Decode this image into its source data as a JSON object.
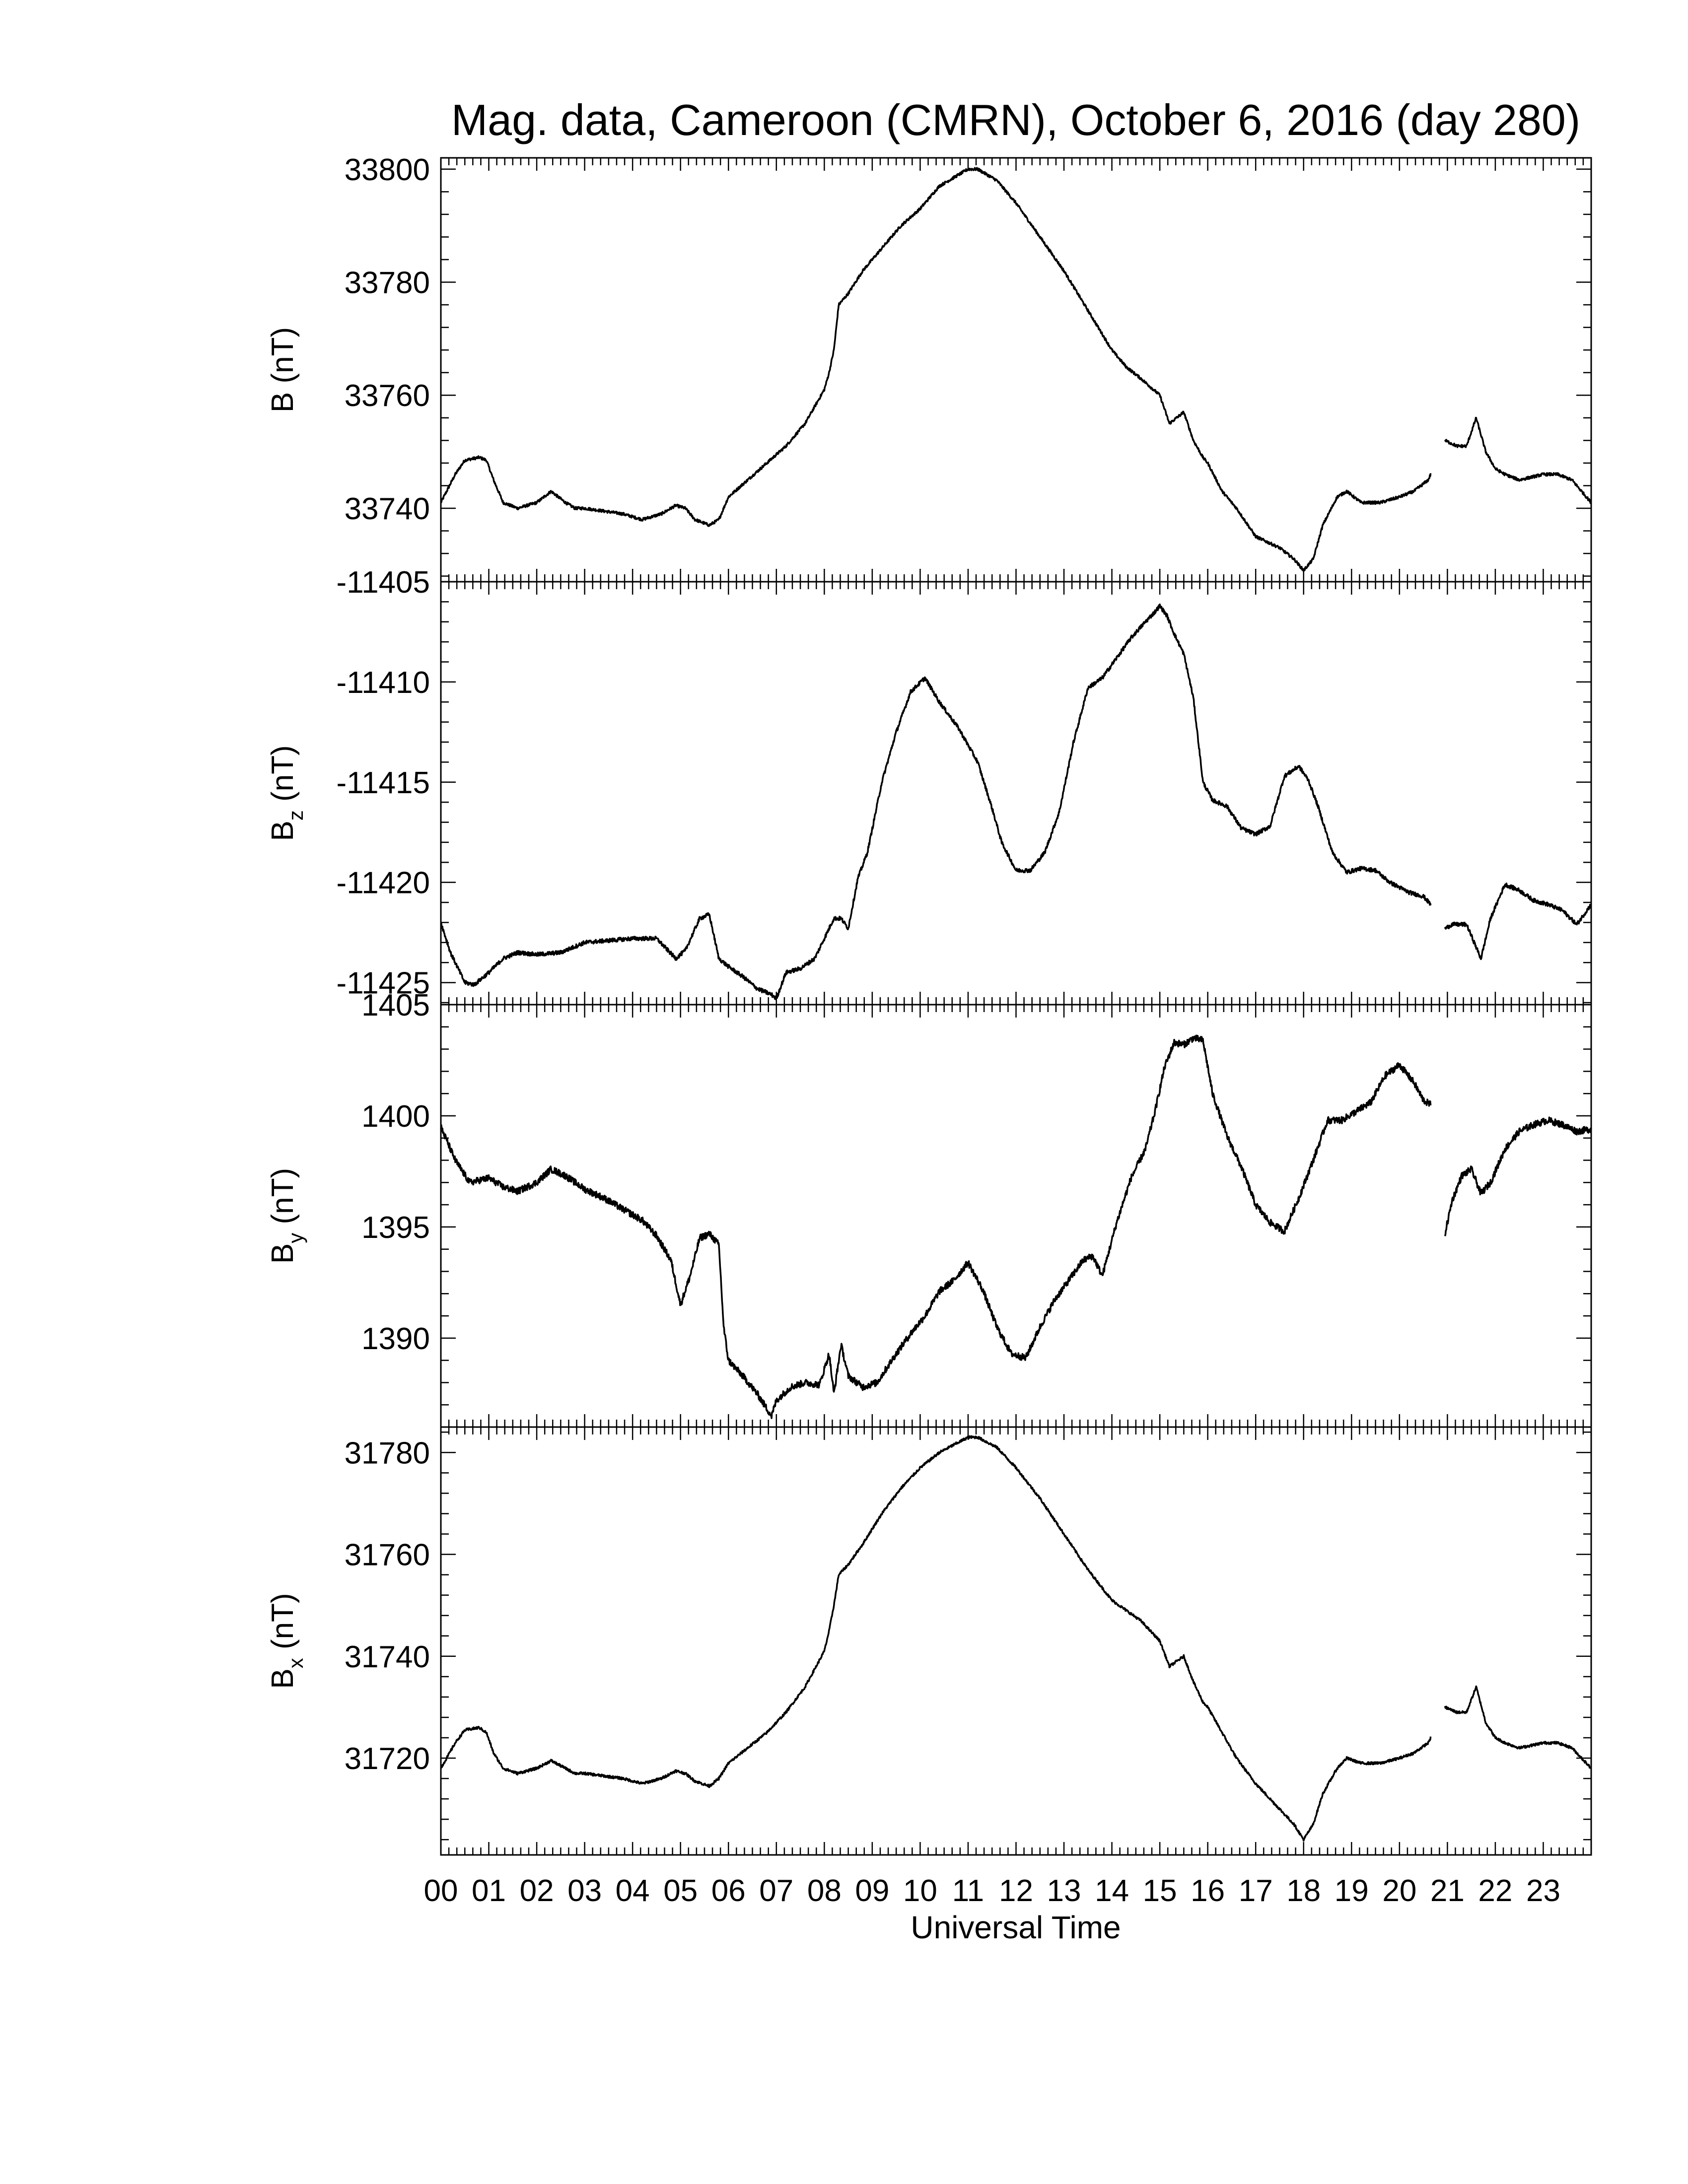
{
  "chart_data": {
    "title": "Mag. data, Cameroon (CMRN), October 6, 2016 (day 280)",
    "type": "line",
    "xlabel": "Universal Time",
    "x_tick_labels": [
      "00",
      "01",
      "02",
      "03",
      "04",
      "05",
      "06",
      "07",
      "08",
      "09",
      "10",
      "11",
      "12",
      "13",
      "14",
      "15",
      "16",
      "17",
      "18",
      "19",
      "20",
      "21",
      "22",
      "23"
    ],
    "x_range_hours": [
      0,
      24
    ],
    "data_gap_hours": [
      20.65,
      20.95
    ],
    "line_color": "#000000",
    "panels": [
      {
        "id": "B",
        "ylabel": "B (nT)",
        "ylabel_main": "B",
        "ylabel_sub": "",
        "ylabel_unit": " (nT)",
        "ylim": [
          33727,
          33802
        ],
        "yticks": [
          33740,
          33760,
          33780,
          33800
        ],
        "yticks_top_partial": false,
        "noise": 0.25,
        "x": [
          0,
          0.3,
          0.5,
          0.8,
          0.95,
          1.1,
          1.3,
          1.6,
          2.0,
          2.3,
          2.6,
          2.8,
          3.0,
          3.4,
          3.8,
          4.2,
          4.6,
          4.9,
          5.1,
          5.3,
          5.6,
          5.8,
          6.0,
          6.4,
          6.8,
          7.2,
          7.6,
          8.0,
          8.1,
          8.2,
          8.3,
          8.5,
          8.8,
          9.2,
          9.6,
          10.0,
          10.4,
          10.8,
          11.0,
          11.2,
          11.6,
          12.0,
          12.5,
          13.0,
          13.5,
          14.0,
          14.3,
          14.6,
          15.0,
          15.2,
          15.5,
          15.7,
          15.9,
          16.0,
          16.3,
          16.6,
          17.0,
          17.5,
          17.8,
          18.0,
          18.2,
          18.4,
          18.7,
          18.9,
          19.2,
          19.6,
          20.0,
          20.3,
          20.6,
          20.95,
          21.2,
          21.4,
          21.6,
          21.8,
          22.0,
          22.2,
          22.5,
          23.0,
          23.3,
          23.6,
          24.0
        ],
        "y": [
          33741,
          33746,
          33748.5,
          33749,
          33748.5,
          33745,
          33741,
          33740,
          33741,
          33743,
          33741,
          33740,
          33740,
          33739.5,
          33739,
          33738,
          33739,
          33740.5,
          33740,
          33738,
          33737,
          33738,
          33742,
          33745,
          33748,
          33751,
          33755,
          33761,
          33764,
          33768,
          33776,
          33778,
          33782,
          33786,
          33790,
          33793,
          33797,
          33799,
          33800,
          33800,
          33798,
          33794,
          33788,
          33782,
          33775,
          33768,
          33765,
          33763,
          33760,
          33755,
          33757,
          33752,
          33749,
          33748,
          33743,
          33740,
          33735,
          33733,
          33731,
          33729,
          33731,
          33737,
          33742,
          33743,
          33741,
          33741,
          33742,
          33743,
          33745,
          33752,
          33751,
          33751,
          33756,
          33750,
          33747,
          33746,
          33745,
          33746,
          33746,
          33745,
          33741
        ]
      },
      {
        "id": "Bz",
        "ylabel": "Bz (nT)",
        "ylabel_main": "B",
        "ylabel_sub": "z",
        "ylabel_unit": " (nT)",
        "ylim": [
          -11426.1,
          -11405
        ],
        "yticks": [
          -11425,
          -11420,
          -11415,
          -11410,
          -11405
        ],
        "yticks_top_partial": true,
        "noise": 0.1,
        "x": [
          0,
          0.2,
          0.5,
          0.7,
          1.0,
          1.3,
          1.6,
          2.0,
          2.5,
          3.0,
          3.5,
          4.0,
          4.5,
          4.9,
          5.1,
          5.4,
          5.6,
          5.8,
          6.0,
          6.3,
          6.6,
          6.9,
          7.0,
          7.2,
          7.5,
          7.8,
          8.0,
          8.2,
          8.35,
          8.5,
          8.7,
          8.9,
          9.2,
          9.5,
          9.8,
          10.1,
          10.4,
          10.8,
          11.2,
          11.5,
          11.7,
          12.0,
          12.3,
          12.6,
          12.9,
          13.2,
          13.5,
          13.8,
          14.1,
          14.4,
          14.7,
          14.9,
          15.0,
          15.15,
          15.3,
          15.5,
          15.7,
          15.9,
          16.1,
          16.4,
          16.7,
          17.0,
          17.3,
          17.6,
          17.9,
          18.1,
          18.3,
          18.6,
          18.9,
          19.2,
          19.5,
          19.8,
          20.2,
          20.5,
          20.65,
          20.95,
          21.1,
          21.4,
          21.7,
          21.9,
          22.2,
          22.5,
          22.8,
          23.1,
          23.4,
          23.7,
          24.0
        ],
        "y": [
          -11422,
          -11423.5,
          -11425,
          -11425.1,
          -11424.5,
          -11423.8,
          -11423.5,
          -11423.6,
          -11423.5,
          -11423,
          -11422.9,
          -11422.8,
          -11422.8,
          -11423.8,
          -11423.4,
          -11421.8,
          -11421.6,
          -11423.8,
          -11424.2,
          -11424.7,
          -11425.3,
          -11425.6,
          -11425.8,
          -11424.5,
          -11424.3,
          -11423.8,
          -11422.8,
          -11421.8,
          -11421.8,
          -11422.3,
          -11419.8,
          -11418.5,
          -11415,
          -11412.5,
          -11410.5,
          -11409.8,
          -11411,
          -11412.3,
          -11414,
          -11416.3,
          -11418,
          -11419.4,
          -11419.4,
          -11418.5,
          -11416.5,
          -11413,
          -11410.3,
          -11409.8,
          -11408.8,
          -11407.8,
          -11407,
          -11406.5,
          -11406.2,
          -11406.7,
          -11407.6,
          -11408.6,
          -11410.8,
          -11415,
          -11415.9,
          -11416.2,
          -11417.3,
          -11417.6,
          -11417.2,
          -11414.7,
          -11414.2,
          -11414.9,
          -11416.2,
          -11418.5,
          -11419.5,
          -11419.3,
          -11419.4,
          -11420,
          -11420.5,
          -11420.7,
          -11421.1,
          -11422.3,
          -11422.1,
          -11422.1,
          -11423.8,
          -11421.8,
          -11420.1,
          -11420.4,
          -11420.9,
          -11421.1,
          -11421.4,
          -11422.1,
          -11421.1
        ]
      },
      {
        "id": "By",
        "ylabel": "By (nT)",
        "ylabel_main": "B",
        "ylabel_sub": "y",
        "ylabel_unit": " (nT)",
        "ylim": [
          1386,
          1405
        ],
        "yticks": [
          1390,
          1395,
          1400,
          1405
        ],
        "yticks_top_partial": true,
        "noise": 0.15,
        "x": [
          0,
          0.3,
          0.6,
          1.0,
          1.3,
          1.6,
          2.0,
          2.3,
          2.6,
          3.0,
          3.4,
          3.8,
          4.2,
          4.5,
          4.8,
          5.0,
          5.2,
          5.4,
          5.6,
          5.8,
          5.9,
          6.0,
          6.3,
          6.6,
          6.9,
          7.0,
          7.3,
          7.6,
          7.9,
          8.1,
          8.2,
          8.35,
          8.5,
          8.8,
          9.1,
          9.5,
          9.8,
          10.1,
          10.4,
          10.7,
          11.0,
          11.3,
          11.6,
          11.9,
          12.2,
          12.5,
          12.8,
          13.1,
          13.4,
          13.6,
          13.8,
          14.1,
          14.4,
          14.7,
          14.9,
          15.1,
          15.3,
          15.5,
          15.7,
          15.9,
          16.1,
          16.4,
          16.7,
          17.0,
          17.3,
          17.6,
          17.9,
          18.2,
          18.5,
          18.8,
          19.1,
          19.4,
          19.7,
          20.0,
          20.3,
          20.5,
          20.65,
          20.95,
          21.1,
          21.3,
          21.5,
          21.7,
          21.9,
          22.2,
          22.5,
          22.8,
          23.1,
          23.4,
          23.7,
          24.0
        ],
        "y": [
          1399.5,
          1398,
          1397,
          1397.2,
          1396.8,
          1396.6,
          1397,
          1397.6,
          1397.3,
          1396.7,
          1396.3,
          1395.8,
          1395.3,
          1394.6,
          1393.5,
          1391.5,
          1392.8,
          1394.5,
          1394.7,
          1394.2,
          1390.5,
          1389,
          1388.3,
          1387.5,
          1386.5,
          1387.2,
          1387.8,
          1388,
          1387.9,
          1389.3,
          1387.5,
          1389.7,
          1388.3,
          1387.8,
          1388,
          1389.3,
          1390.2,
          1391,
          1392.1,
          1392.6,
          1393.4,
          1392.2,
          1390.5,
          1389.3,
          1389.1,
          1390.5,
          1391.7,
          1392.6,
          1393.5,
          1393.7,
          1392.8,
          1395.2,
          1397.2,
          1398.5,
          1400.2,
          1402.2,
          1403.3,
          1403.2,
          1403.5,
          1403.4,
          1401,
          1399.1,
          1397.7,
          1396,
          1395.2,
          1394.8,
          1396.3,
          1398,
          1399.8,
          1399.8,
          1400.2,
          1400.6,
          1401.8,
          1402.3,
          1401.5,
          1400.7,
          1400.5,
          1394.7,
          1396.2,
          1397.3,
          1397.6,
          1396.5,
          1397,
          1398.5,
          1399.3,
          1399.6,
          1399.8,
          1399.6,
          1399.3,
          1399.4
        ]
      },
      {
        "id": "Bx",
        "ylabel": "Bx (nT)",
        "ylabel_main": "B",
        "ylabel_sub": "x",
        "ylabel_unit": " (nT)",
        "ylim": [
          31701,
          31785
        ],
        "yticks": [
          31720,
          31740,
          31760,
          31780
        ],
        "yticks_top_partial": true,
        "noise": 0.25,
        "x": [
          0,
          0.3,
          0.5,
          0.8,
          0.95,
          1.1,
          1.3,
          1.6,
          2.0,
          2.3,
          2.6,
          2.8,
          3.0,
          3.4,
          3.8,
          4.2,
          4.6,
          4.9,
          5.1,
          5.3,
          5.6,
          5.8,
          6.0,
          6.4,
          6.8,
          7.2,
          7.6,
          8.0,
          8.1,
          8.2,
          8.3,
          8.5,
          8.8,
          9.2,
          9.6,
          10.0,
          10.4,
          10.8,
          11.0,
          11.2,
          11.6,
          12.0,
          12.5,
          13.0,
          13.5,
          14.0,
          14.3,
          14.6,
          15.0,
          15.2,
          15.5,
          15.7,
          15.9,
          16.0,
          16.3,
          16.6,
          17.0,
          17.5,
          17.8,
          18.0,
          18.2,
          18.4,
          18.7,
          18.9,
          19.2,
          19.6,
          20.0,
          20.3,
          20.6,
          20.95,
          21.2,
          21.4,
          21.6,
          21.8,
          22.0,
          22.2,
          22.5,
          23.0,
          23.3,
          23.6,
          24.0
        ],
        "y": [
          31718,
          31723,
          31725.5,
          31726,
          31725,
          31721,
          31718,
          31717,
          31718,
          31719.5,
          31718,
          31717,
          31717,
          31716.5,
          31716,
          31715,
          31716,
          31717.5,
          31717,
          31715.5,
          31714.5,
          31716,
          31719,
          31722,
          31725,
          31729,
          31734,
          31741,
          31745,
          31750,
          31756,
          31758,
          31762,
          31768,
          31773,
          31777,
          31780,
          31782,
          31783,
          31783,
          31781,
          31777,
          31771,
          31764,
          31757,
          31751,
          31749,
          31747,
          31743,
          31738,
          31740,
          31735,
          31731,
          31730,
          31725,
          31720,
          31715,
          31710,
          31707,
          31704,
          31707,
          31713,
          31718,
          31720,
          31719,
          31719,
          31720,
          31721,
          31723,
          31730,
          31729,
          31729,
          31734,
          31727,
          31724,
          31723,
          31722,
          31723,
          31723,
          31722,
          31718
        ]
      }
    ]
  }
}
